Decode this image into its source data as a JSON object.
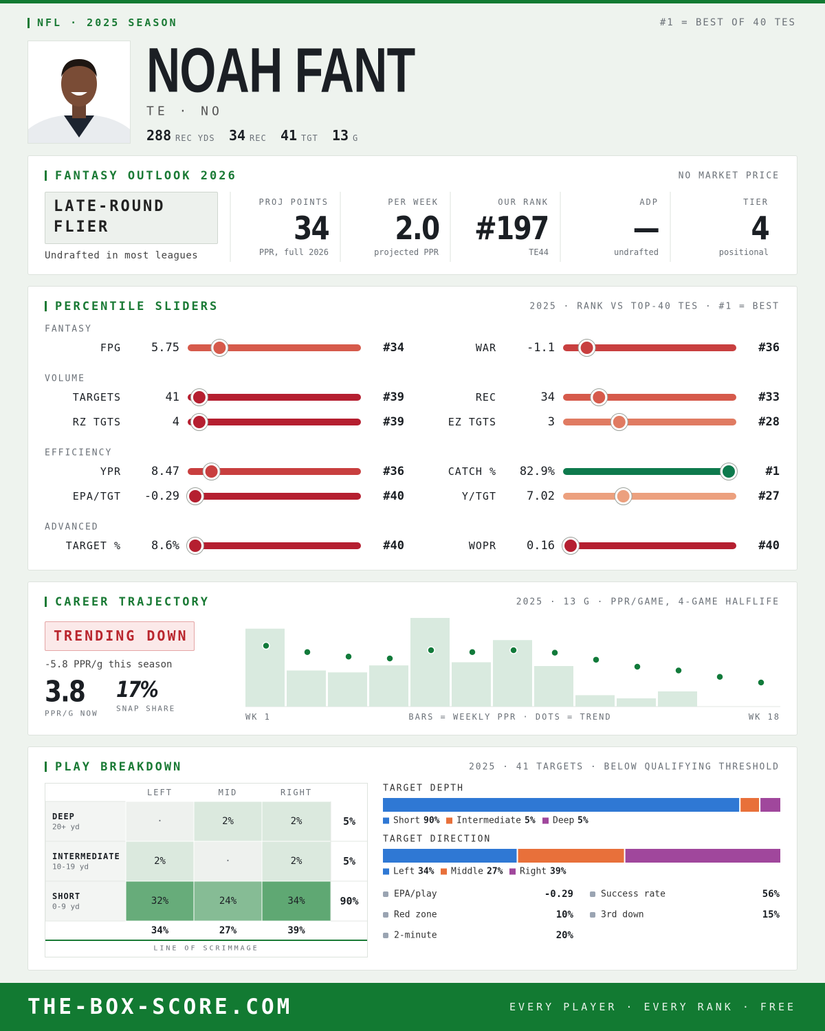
{
  "header": {
    "league": "NFL · 2025 SEASON",
    "note": "#1 = BEST OF 40 TES",
    "name": "NOAH FANT",
    "position": "TE · NO",
    "stats": [
      {
        "value": "288",
        "label": "REC YDS"
      },
      {
        "value": "34",
        "label": "REC"
      },
      {
        "value": "41",
        "label": "TGT"
      },
      {
        "value": "13",
        "label": "G"
      }
    ]
  },
  "outlook": {
    "title": "FANTASY OUTLOOK 2026",
    "note": "NO MARKET PRICE",
    "tag": "LATE-ROUND FLIER",
    "tag_note": "Undrafted in most leagues",
    "stats": [
      {
        "label": "PROJ POINTS",
        "value": "34",
        "sub": "PPR, full 2026"
      },
      {
        "label": "PER WEEK",
        "value": "2.0",
        "sub": "projected PPR"
      },
      {
        "label": "OUR RANK",
        "value": "#197",
        "sub": "TE44"
      },
      {
        "label": "ADP",
        "value": "—",
        "sub": "undrafted"
      },
      {
        "label": "TIER",
        "value": "4",
        "sub": "positional"
      }
    ]
  },
  "sliders": {
    "title": "PERCENTILE SLIDERS",
    "note": "2025 · RANK VS TOP-40 TES · #1 = BEST",
    "xlim": [
      40,
      1
    ],
    "groups": [
      {
        "label": "FANTASY",
        "items": [
          {
            "label": "FPG",
            "value": "5.75",
            "rank": {
              "value": 34,
              "label": "#34"
            },
            "color": "#d65a4b"
          },
          {
            "label": "WAR",
            "value": "-1.1",
            "rank": {
              "value": 36,
              "label": "#36"
            },
            "color": "#c83f3f"
          }
        ]
      },
      {
        "label": "VOLUME",
        "items": [
          {
            "label": "TARGETS",
            "value": "41",
            "rank": {
              "value": 39,
              "label": "#39"
            },
            "color": "#b51f30"
          },
          {
            "label": "REC",
            "value": "34",
            "rank": {
              "value": 33,
              "label": "#33"
            },
            "color": "#d65a4b"
          },
          {
            "label": "RZ TGTS",
            "value": "4",
            "rank": {
              "value": 39,
              "label": "#39"
            },
            "color": "#b51f30"
          },
          {
            "label": "EZ TGTS",
            "value": "3",
            "rank": {
              "value": 28,
              "label": "#28"
            },
            "color": "#e07b62"
          }
        ]
      },
      {
        "label": "EFFICIENCY",
        "items": [
          {
            "label": "YPR",
            "value": "8.47",
            "rank": {
              "value": 36,
              "label": "#36"
            },
            "color": "#c83f3f"
          },
          {
            "label": "CATCH %",
            "value": "82.9%",
            "rank": {
              "value": 1,
              "label": "#1"
            },
            "color": "#0e7a4d"
          },
          {
            "label": "EPA/TGT",
            "value": "-0.29",
            "rank": {
              "value": 40,
              "label": "#40"
            },
            "color": "#b51f30"
          },
          {
            "label": "Y/TGT",
            "value": "7.02",
            "rank": {
              "value": 27,
              "label": "#27"
            },
            "color": "#eca07e"
          }
        ]
      },
      {
        "label": "ADVANCED",
        "items": [
          {
            "label": "TARGET %",
            "value": "8.6%",
            "rank": {
              "value": 40,
              "label": "#40"
            },
            "color": "#b51f30"
          },
          {
            "label": "WOPR",
            "value": "0.16",
            "rank": {
              "value": 40,
              "label": "#40"
            },
            "color": "#b51f30"
          }
        ]
      }
    ]
  },
  "career": {
    "title": "CAREER TRAJECTORY",
    "note": "2025 · 13 G · PPR/GAME, 4-GAME HALFLIFE",
    "badge": "TRENDING DOWN",
    "delta": "-5.8 PPR/g this season",
    "now": "3.8",
    "now_label": "PPR/G NOW",
    "snap": "17%",
    "snap_label": "SNAP SHARE",
    "chart": {
      "categories": [
        "WK 1",
        null,
        null,
        null,
        null,
        null,
        null,
        null,
        null,
        null,
        null,
        null,
        "WK 18"
      ],
      "caption": "BARS = WEEKLY PPR · DOTS = TREND",
      "ylim": [
        0,
        14
      ],
      "series": [
        {
          "type": "bar",
          "color": "#d9eadf",
          "values": [
            12.3,
            5.7,
            5.4,
            6.5,
            14.0,
            7.0,
            10.5,
            6.4,
            1.8,
            1.3,
            2.4,
            0,
            0
          ]
        },
        {
          "type": "scatter",
          "color": "#117a3a",
          "values": [
            9.6,
            8.6,
            7.9,
            7.6,
            8.9,
            8.6,
            8.9,
            8.5,
            7.4,
            6.3,
            5.7,
            4.7,
            3.8
          ]
        }
      ]
    }
  },
  "breakdown": {
    "title": "PLAY BREAKDOWN",
    "note": "2025 · 41 TARGETS · BELOW QUALIFYING THRESHOLD",
    "table": {
      "columns": [
        "LEFT",
        "MID",
        "RIGHT"
      ],
      "rows": [
        {
          "label": "DEEP",
          "sub": "20+ yd",
          "cells": [
            {
              "value": null,
              "label": "·"
            },
            {
              "value": 2,
              "label": "2%"
            },
            {
              "value": 2,
              "label": "2%"
            }
          ],
          "total": "5%"
        },
        {
          "label": "INTERMEDIATE",
          "sub": "10-19 yd",
          "cells": [
            {
              "value": 2,
              "label": "2%"
            },
            {
              "value": null,
              "label": "·"
            },
            {
              "value": 2,
              "label": "2%"
            }
          ],
          "total": "5%"
        },
        {
          "label": "SHORT",
          "sub": "0-9 yd",
          "cells": [
            {
              "value": 32,
              "label": "32%"
            },
            {
              "value": 24,
              "label": "24%"
            },
            {
              "value": 34,
              "label": "34%"
            }
          ],
          "total": "90%"
        }
      ],
      "totals": [
        "34%",
        "27%",
        "39%"
      ],
      "caption": "LINE OF SCRIMMAGE"
    },
    "depth": {
      "title": "TARGET DEPTH",
      "segments": [
        {
          "name": "Short",
          "value": 90,
          "label": "90%",
          "color": "#2f78d4"
        },
        {
          "name": "Intermediate",
          "value": 5,
          "label": "5%",
          "color": "#e8703a"
        },
        {
          "name": "Deep",
          "value": 5,
          "label": "5%",
          "color": "#a0479c"
        }
      ]
    },
    "direction": {
      "title": "TARGET DIRECTION",
      "segments": [
        {
          "name": "Left",
          "value": 34,
          "label": "34%",
          "color": "#2f78d4"
        },
        {
          "name": "Middle",
          "value": 27,
          "label": "27%",
          "color": "#e8703a"
        },
        {
          "name": "Right",
          "value": 39,
          "label": "39%",
          "color": "#a0479c"
        }
      ]
    },
    "metrics": [
      {
        "label": "EPA/play",
        "value": "-0.29"
      },
      {
        "label": "Success rate",
        "value": "56%"
      },
      {
        "label": "Red zone",
        "value": "10%"
      },
      {
        "label": "3rd down",
        "value": "15%"
      },
      {
        "label": "2-minute",
        "value": "20%"
      }
    ]
  },
  "footer": {
    "site": "THE-BOX-SCORE.COM",
    "tagline": "EVERY PLAYER · EVERY RANK · FREE"
  }
}
